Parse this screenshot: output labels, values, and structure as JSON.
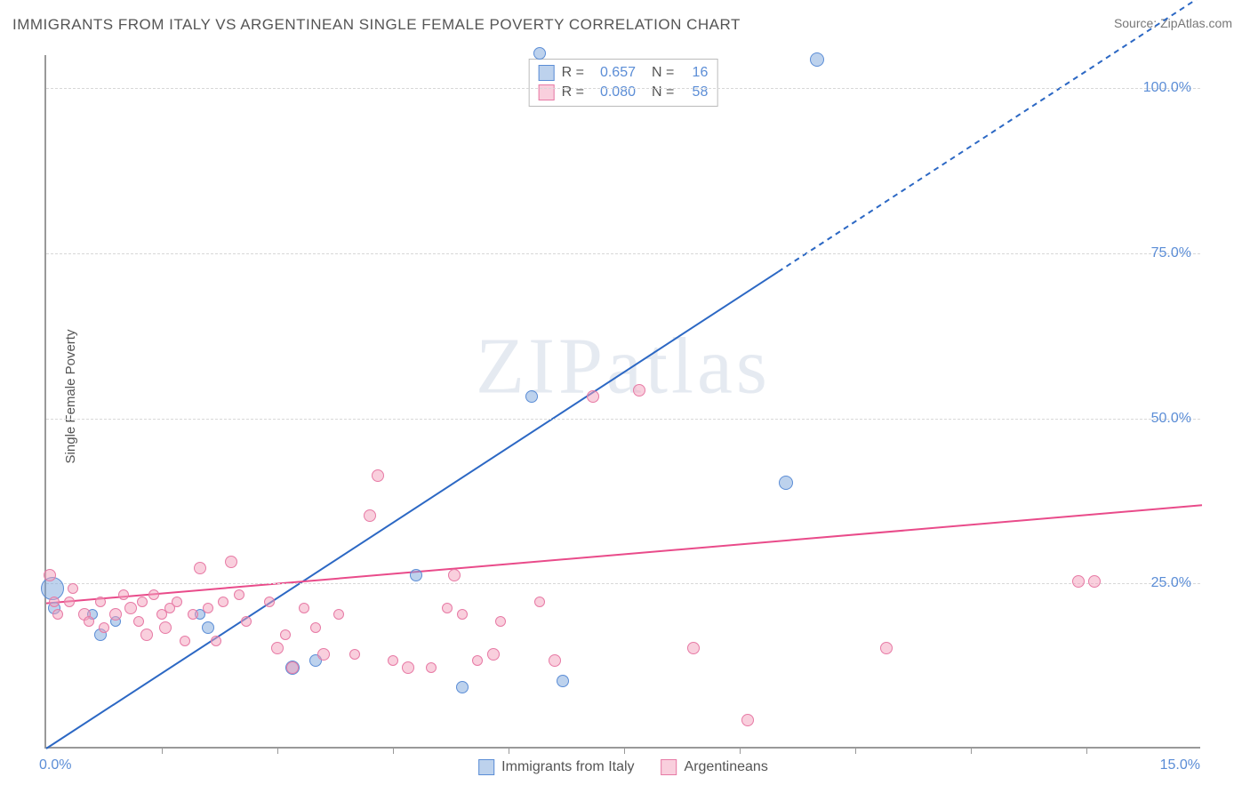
{
  "title": "IMMIGRANTS FROM ITALY VS ARGENTINEAN SINGLE FEMALE POVERTY CORRELATION CHART",
  "source": "Source: ZipAtlas.com",
  "watermark": "ZIPatlas",
  "ylabel": "Single Female Poverty",
  "chart": {
    "type": "scatter",
    "xlim": [
      0,
      15
    ],
    "ylim": [
      0,
      105
    ],
    "yticks": [
      25,
      50,
      75,
      100
    ],
    "ytick_labels": [
      "25.0%",
      "50.0%",
      "75.0%",
      "100.0%"
    ],
    "xaxis_min_label": "0.0%",
    "xaxis_max_label": "15.0%",
    "xticks": [
      1.5,
      3,
      4.5,
      6,
      7.5,
      9,
      10.5,
      12,
      13.5
    ],
    "background_color": "#ffffff",
    "grid_color": "#d8d8d8",
    "axis_color": "#999999",
    "tick_label_color": "#5b8dd6",
    "series": [
      {
        "name": "Immigrants from Italy",
        "color_fill": "rgba(124,166,220,0.5)",
        "color_stroke": "#5b8dd6",
        "r_value": "0.657",
        "n_value": "16",
        "trend": {
          "slope": 7.6,
          "intercept": 0,
          "color": "#2c68c4",
          "dash_after_x": 9.5
        },
        "points": [
          {
            "x": 0.08,
            "y": 24,
            "size": 26
          },
          {
            "x": 0.1,
            "y": 21,
            "size": 14
          },
          {
            "x": 0.6,
            "y": 20,
            "size": 12
          },
          {
            "x": 0.7,
            "y": 17,
            "size": 14
          },
          {
            "x": 0.9,
            "y": 19,
            "size": 12
          },
          {
            "x": 2.1,
            "y": 18,
            "size": 14
          },
          {
            "x": 2.0,
            "y": 20,
            "size": 12
          },
          {
            "x": 3.2,
            "y": 12,
            "size": 16
          },
          {
            "x": 3.5,
            "y": 13,
            "size": 14
          },
          {
            "x": 4.8,
            "y": 26,
            "size": 14
          },
          {
            "x": 5.4,
            "y": 9,
            "size": 14
          },
          {
            "x": 6.7,
            "y": 10,
            "size": 14
          },
          {
            "x": 6.3,
            "y": 53,
            "size": 14
          },
          {
            "x": 9.6,
            "y": 40,
            "size": 16
          },
          {
            "x": 10.0,
            "y": 104,
            "size": 16
          },
          {
            "x": 6.4,
            "y": 105,
            "size": 14
          }
        ]
      },
      {
        "name": "Argentineans",
        "color_fill": "rgba(244,160,188,0.5)",
        "color_stroke": "#e77aa5",
        "r_value": "0.080",
        "n_value": "58",
        "trend": {
          "slope": 0.15,
          "intercept": 22,
          "color": "#e94b8a",
          "dash_after_x": 99
        },
        "points": [
          {
            "x": 0.05,
            "y": 26,
            "size": 14
          },
          {
            "x": 0.1,
            "y": 22,
            "size": 12
          },
          {
            "x": 0.15,
            "y": 20,
            "size": 12
          },
          {
            "x": 0.3,
            "y": 22,
            "size": 12
          },
          {
            "x": 0.35,
            "y": 24,
            "size": 12
          },
          {
            "x": 0.5,
            "y": 20,
            "size": 14
          },
          {
            "x": 0.55,
            "y": 19,
            "size": 12
          },
          {
            "x": 0.7,
            "y": 22,
            "size": 12
          },
          {
            "x": 0.75,
            "y": 18,
            "size": 12
          },
          {
            "x": 0.9,
            "y": 20,
            "size": 14
          },
          {
            "x": 1.0,
            "y": 23,
            "size": 12
          },
          {
            "x": 1.1,
            "y": 21,
            "size": 14
          },
          {
            "x": 1.2,
            "y": 19,
            "size": 12
          },
          {
            "x": 1.25,
            "y": 22,
            "size": 12
          },
          {
            "x": 1.3,
            "y": 17,
            "size": 14
          },
          {
            "x": 1.4,
            "y": 23,
            "size": 12
          },
          {
            "x": 1.5,
            "y": 20,
            "size": 12
          },
          {
            "x": 1.55,
            "y": 18,
            "size": 14
          },
          {
            "x": 1.6,
            "y": 21,
            "size": 12
          },
          {
            "x": 1.7,
            "y": 22,
            "size": 12
          },
          {
            "x": 1.8,
            "y": 16,
            "size": 12
          },
          {
            "x": 1.9,
            "y": 20,
            "size": 12
          },
          {
            "x": 2.0,
            "y": 27,
            "size": 14
          },
          {
            "x": 2.1,
            "y": 21,
            "size": 12
          },
          {
            "x": 2.2,
            "y": 16,
            "size": 12
          },
          {
            "x": 2.3,
            "y": 22,
            "size": 12
          },
          {
            "x": 2.4,
            "y": 28,
            "size": 14
          },
          {
            "x": 2.5,
            "y": 23,
            "size": 12
          },
          {
            "x": 2.6,
            "y": 19,
            "size": 12
          },
          {
            "x": 2.9,
            "y": 22,
            "size": 12
          },
          {
            "x": 3.0,
            "y": 15,
            "size": 14
          },
          {
            "x": 3.1,
            "y": 17,
            "size": 12
          },
          {
            "x": 3.2,
            "y": 12,
            "size": 14
          },
          {
            "x": 3.35,
            "y": 21,
            "size": 12
          },
          {
            "x": 3.5,
            "y": 18,
            "size": 12
          },
          {
            "x": 3.6,
            "y": 14,
            "size": 14
          },
          {
            "x": 3.8,
            "y": 20,
            "size": 12
          },
          {
            "x": 4.0,
            "y": 14,
            "size": 12
          },
          {
            "x": 4.2,
            "y": 35,
            "size": 14
          },
          {
            "x": 4.3,
            "y": 41,
            "size": 14
          },
          {
            "x": 4.5,
            "y": 13,
            "size": 12
          },
          {
            "x": 4.7,
            "y": 12,
            "size": 14
          },
          {
            "x": 5.0,
            "y": 12,
            "size": 12
          },
          {
            "x": 5.2,
            "y": 21,
            "size": 12
          },
          {
            "x": 5.3,
            "y": 26,
            "size": 14
          },
          {
            "x": 5.4,
            "y": 20,
            "size": 12
          },
          {
            "x": 5.6,
            "y": 13,
            "size": 12
          },
          {
            "x": 5.8,
            "y": 14,
            "size": 14
          },
          {
            "x": 5.9,
            "y": 19,
            "size": 12
          },
          {
            "x": 6.4,
            "y": 22,
            "size": 12
          },
          {
            "x": 6.6,
            "y": 13,
            "size": 14
          },
          {
            "x": 7.1,
            "y": 53,
            "size": 14
          },
          {
            "x": 7.7,
            "y": 54,
            "size": 14
          },
          {
            "x": 8.4,
            "y": 15,
            "size": 14
          },
          {
            "x": 9.1,
            "y": 4,
            "size": 14
          },
          {
            "x": 10.9,
            "y": 15,
            "size": 14
          },
          {
            "x": 13.4,
            "y": 25,
            "size": 14
          },
          {
            "x": 13.6,
            "y": 25,
            "size": 14
          }
        ]
      }
    ],
    "legend_top": {
      "r_label": "R =",
      "n_label": "N ="
    },
    "legend_bottom": [
      "Immigrants from Italy",
      "Argentineans"
    ]
  }
}
